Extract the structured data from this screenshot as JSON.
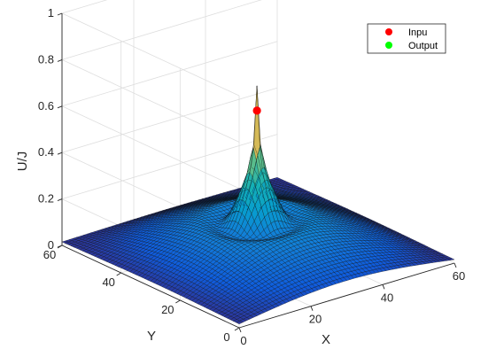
{
  "chart_data": {
    "type": "surface",
    "title": "",
    "xlabel": "X",
    "ylabel": "Y",
    "zlabel": "U/J",
    "xlim": [
      0,
      60
    ],
    "ylim": [
      0,
      60
    ],
    "zlim": [
      0,
      1
    ],
    "x_ticks": [
      "0",
      "20",
      "40",
      "60"
    ],
    "y_ticks": [
      "0",
      "20",
      "40",
      "60"
    ],
    "z_ticks": [
      "0",
      "0.2",
      "0.4",
      "0.6",
      "0.8",
      "1"
    ],
    "grid": true,
    "colormap": "parula",
    "surface_peak": {
      "x": 28,
      "y": 28,
      "z": 0.6
    },
    "markers": [
      {
        "name": "Inpu",
        "x": 28,
        "y": 28,
        "z": 0.64,
        "color": "#ff0000"
      },
      {
        "name": "Output",
        "x": 28,
        "y": 28,
        "z": 0.64,
        "color": "#00ff00",
        "visible": false
      }
    ],
    "legend": {
      "position": "top-right",
      "entries": [
        {
          "label": "Inpu",
          "color": "#ff0000"
        },
        {
          "label": "Output",
          "color": "#00ff00"
        }
      ]
    }
  }
}
